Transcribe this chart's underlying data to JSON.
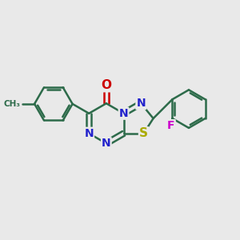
{
  "background_color": "#e9e9e9",
  "bond_color": "#2d6b4a",
  "bond_width": 1.8,
  "fig_size": [
    3.0,
    3.0
  ],
  "dpi": 100,
  "atom_colors": {
    "N": "#2222cc",
    "O": "#cc0000",
    "S": "#aaaa00",
    "F": "#cc00cc",
    "C": "#2d6b4a"
  }
}
